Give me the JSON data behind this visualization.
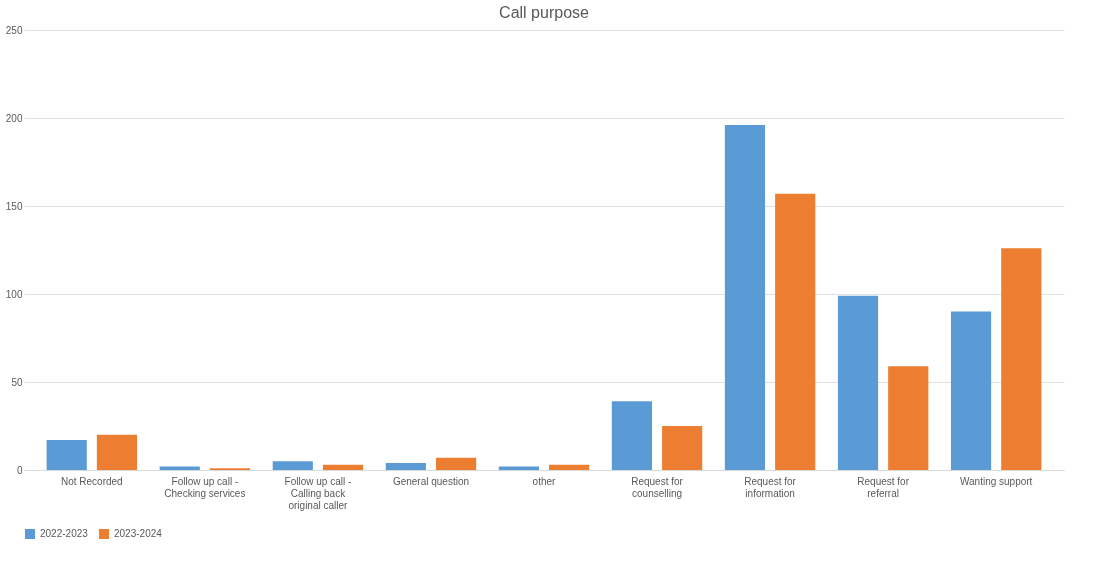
{
  "chart_data": {
    "type": "bar",
    "title": "Call purpose",
    "categories": [
      "Not Recorded",
      "Follow up call - Checking services",
      "Follow up call - Calling back original caller",
      "General question",
      "other",
      "Request for counselling",
      "Request for information",
      "Request for referral",
      "Wanting support"
    ],
    "series": [
      {
        "name": "2022-2023",
        "color": "#5b9bd5",
        "values": [
          17,
          2,
          5,
          4,
          2,
          39,
          196,
          99,
          90
        ]
      },
      {
        "name": "2023-2024",
        "color": "#ed7d31",
        "values": [
          20,
          1,
          3,
          7,
          3,
          25,
          157,
          59,
          126
        ]
      }
    ],
    "ylim": [
      0,
      250
    ],
    "yticks": [
      0,
      50,
      100,
      150,
      200,
      250
    ],
    "grid": "y",
    "legend": "bottom"
  }
}
